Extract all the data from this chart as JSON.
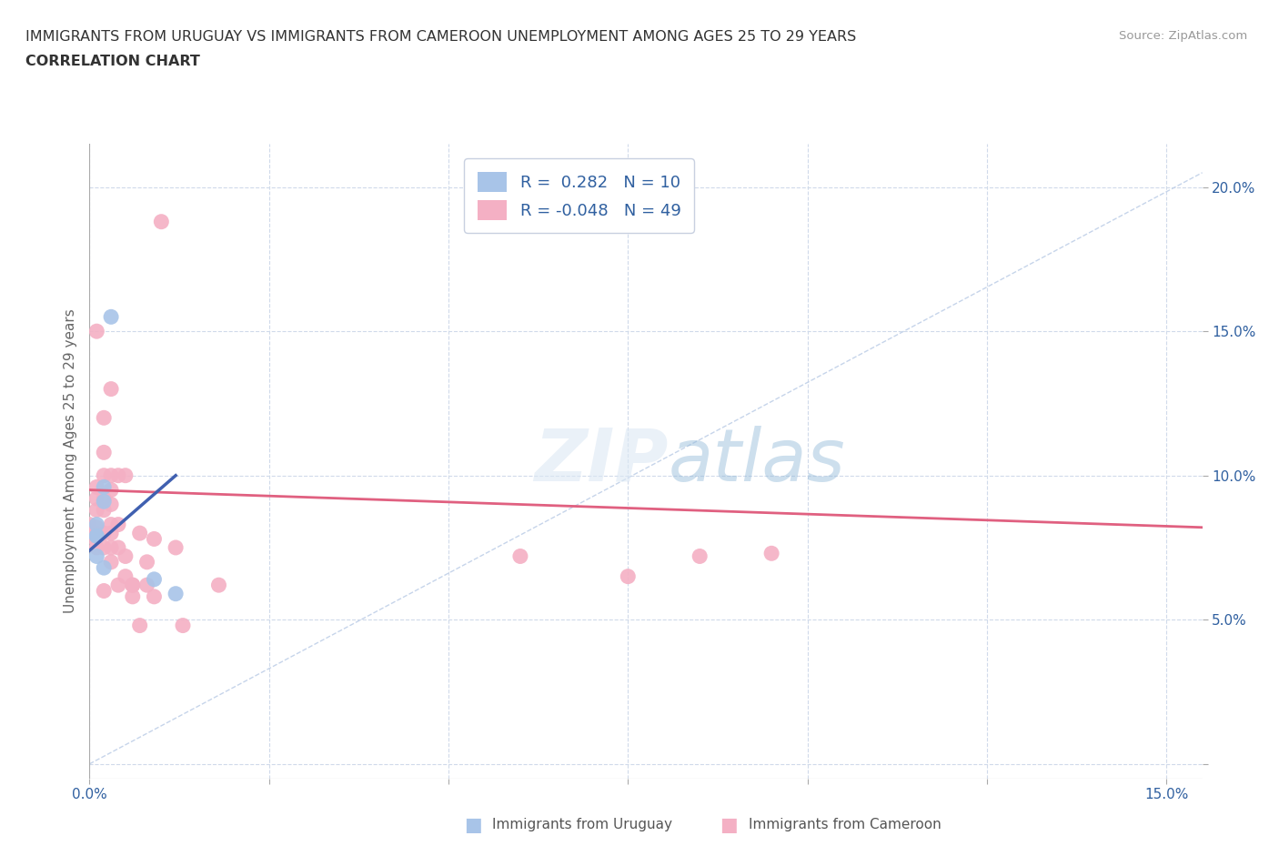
{
  "title_line1": "IMMIGRANTS FROM URUGUAY VS IMMIGRANTS FROM CAMEROON UNEMPLOYMENT AMONG AGES 25 TO 29 YEARS",
  "title_line2": "CORRELATION CHART",
  "source_text": "Source: ZipAtlas.com",
  "ylabel": "Unemployment Among Ages 25 to 29 years",
  "uruguay_color": "#a8c4e8",
  "cameroon_color": "#f4b0c4",
  "uruguay_line_color": "#4060b0",
  "cameroon_line_color": "#e06080",
  "diagonal_color": "#c0d0e8",
  "r_uruguay": 0.282,
  "n_uruguay": 10,
  "r_cameroon": -0.048,
  "n_cameroon": 49,
  "xlim": [
    0.0,
    0.155
  ],
  "ylim": [
    -0.005,
    0.215
  ],
  "yticks": [
    0.0,
    0.05,
    0.1,
    0.15,
    0.2
  ],
  "ytick_labels": [
    "",
    "5.0%",
    "10.0%",
    "15.0%",
    "20.0%"
  ],
  "xticks": [
    0.0,
    0.025,
    0.05,
    0.075,
    0.1,
    0.125,
    0.15
  ],
  "xtick_labels": [
    "0.0%",
    "",
    "",
    "",
    "",
    "",
    "15.0%"
  ],
  "uruguay_scatter_x": [
    0.001,
    0.001,
    0.001,
    0.001,
    0.002,
    0.002,
    0.002,
    0.003,
    0.009,
    0.012
  ],
  "uruguay_scatter_y": [
    0.079,
    0.083,
    0.079,
    0.072,
    0.091,
    0.096,
    0.068,
    0.155,
    0.064,
    0.059
  ],
  "cameroon_scatter_x": [
    0.0,
    0.0,
    0.001,
    0.001,
    0.001,
    0.001,
    0.001,
    0.001,
    0.001,
    0.002,
    0.002,
    0.002,
    0.002,
    0.002,
    0.002,
    0.002,
    0.002,
    0.003,
    0.003,
    0.003,
    0.003,
    0.003,
    0.003,
    0.003,
    0.003,
    0.004,
    0.004,
    0.004,
    0.004,
    0.005,
    0.005,
    0.005,
    0.006,
    0.006,
    0.006,
    0.007,
    0.007,
    0.008,
    0.008,
    0.009,
    0.009,
    0.01,
    0.012,
    0.013,
    0.018,
    0.06,
    0.075,
    0.085,
    0.095
  ],
  "cameroon_scatter_y": [
    0.079,
    0.083,
    0.075,
    0.08,
    0.082,
    0.088,
    0.092,
    0.096,
    0.15,
    0.06,
    0.075,
    0.08,
    0.088,
    0.092,
    0.1,
    0.108,
    0.12,
    0.07,
    0.075,
    0.08,
    0.083,
    0.09,
    0.095,
    0.1,
    0.13,
    0.062,
    0.075,
    0.083,
    0.1,
    0.065,
    0.072,
    0.1,
    0.058,
    0.062,
    0.062,
    0.048,
    0.08,
    0.062,
    0.07,
    0.058,
    0.078,
    0.188,
    0.075,
    0.048,
    0.062,
    0.072,
    0.065,
    0.072,
    0.073
  ],
  "cam_line_x0": 0.0,
  "cam_line_x1": 0.155,
  "cam_line_y0": 0.095,
  "cam_line_y1": 0.082,
  "uru_line_x0": 0.0,
  "uru_line_x1": 0.012,
  "uru_line_y0": 0.074,
  "uru_line_y1": 0.1
}
